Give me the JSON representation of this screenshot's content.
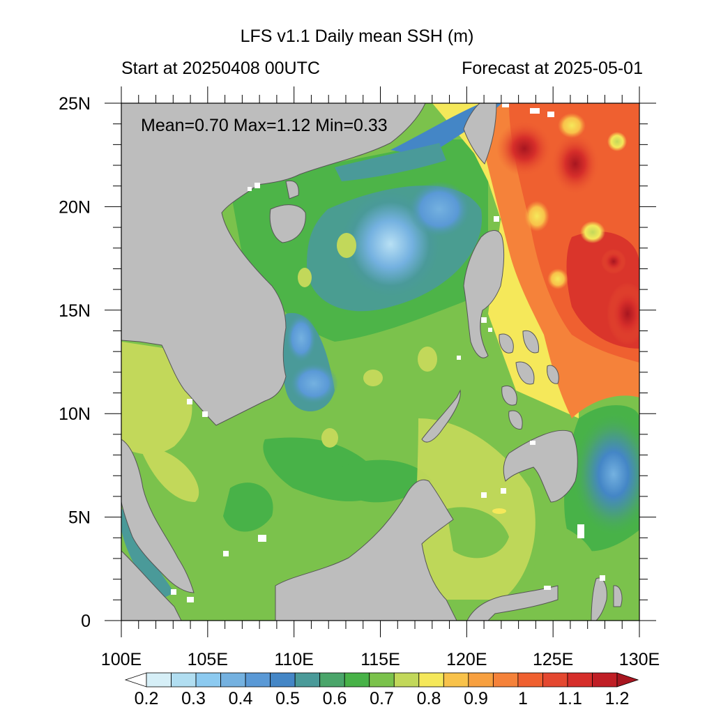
{
  "title": "LFS v1.1 Daily mean SSH (m)",
  "subtitle_left": "Start at 20250408 00UTC",
  "subtitle_right": "Forecast at 2025-05-01",
  "stats": "Mean=0.70  Max=1.12  Min=0.33",
  "map": {
    "lon_range": [
      100,
      130
    ],
    "lat_range": [
      0,
      25
    ],
    "x_ticks": [
      "100E",
      "105E",
      "110E",
      "115E",
      "120E",
      "125E",
      "130E"
    ],
    "y_ticks": [
      "0",
      "5N",
      "10N",
      "15N",
      "20N",
      "25N"
    ],
    "land_color": "#bdbdbd"
  },
  "colorbar": {
    "labels": [
      "0.2",
      "0.3",
      "0.4",
      "0.5",
      "0.6",
      "0.7",
      "0.8",
      "0.9",
      "1",
      "1.1",
      "1.2"
    ],
    "colors": [
      "#ffffff",
      "#d6eff7",
      "#b1def1",
      "#8ccaf0",
      "#74b1e0",
      "#5a99d6",
      "#4486c6",
      "#4a9a99",
      "#4aa56a",
      "#48b248",
      "#7bc24c",
      "#c2d85a",
      "#f5e85a",
      "#f8c24a",
      "#f7a040",
      "#f5823a",
      "#ef6030",
      "#e44830",
      "#d62e2a",
      "#c01e25",
      "#a81620"
    ]
  }
}
